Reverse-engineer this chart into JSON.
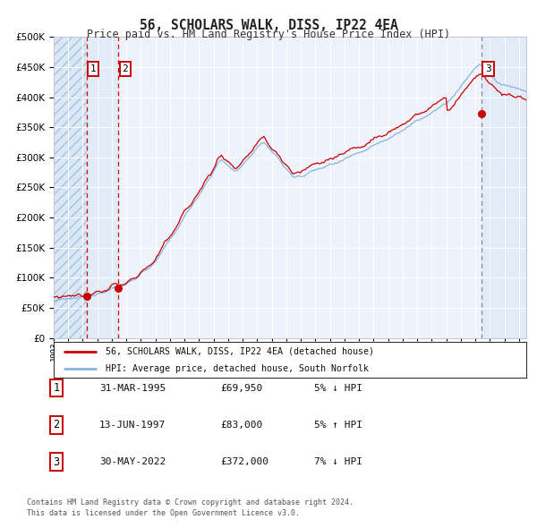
{
  "title": "56, SCHOLARS WALK, DISS, IP22 4EA",
  "subtitle": "Price paid vs. HM Land Registry's House Price Index (HPI)",
  "ylim": [
    0,
    500000
  ],
  "yticks": [
    0,
    50000,
    100000,
    150000,
    200000,
    250000,
    300000,
    350000,
    400000,
    450000,
    500000
  ],
  "xlim_start": 1993.0,
  "xlim_end": 2025.5,
  "hpi_color": "#8ab4e0",
  "price_color": "#cc0000",
  "sale1_year": 1995.25,
  "sale1_price": 69950,
  "sale1_label": "1",
  "sale1_date": "31-MAR-1995",
  "sale1_amount": "£69,950",
  "sale1_pct": "5% ↓ HPI",
  "sale2_year": 1997.45,
  "sale2_price": 83000,
  "sale2_label": "2",
  "sale2_date": "13-JUN-1997",
  "sale2_amount": "£83,000",
  "sale2_pct": "5% ↑ HPI",
  "sale3_year": 2022.42,
  "sale3_price": 372000,
  "sale3_label": "3",
  "sale3_date": "30-MAY-2022",
  "sale3_amount": "£372,000",
  "sale3_pct": "7% ↓ HPI",
  "legend_line1": "56, SCHOLARS WALK, DISS, IP22 4EA (detached house)",
  "legend_line2": "HPI: Average price, detached house, South Norfolk",
  "footer1": "Contains HM Land Registry data © Crown copyright and database right 2024.",
  "footer2": "This data is licensed under the Open Government Licence v3.0.",
  "background_color": "#ffffff",
  "plot_bg_color": "#eef2fa",
  "grid_color": "#ffffff"
}
